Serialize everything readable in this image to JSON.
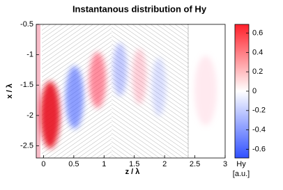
{
  "chart_data": {
    "type": "field",
    "title": "Instantanous distribution of Hy",
    "xlabel": "z / λ",
    "ylabel": "x / λ",
    "xlim": [
      -0.12,
      3
    ],
    "xticks": [
      0,
      0.5,
      1,
      1.5,
      2,
      2.5,
      3
    ],
    "ylim": [
      -2.7,
      -0.5
    ],
    "yticks": [
      -2.5,
      -2,
      -1.5,
      -1,
      -0.5
    ],
    "colorbar": {
      "label": "Hy",
      "unit": "[a.u.]",
      "lim": [
        -0.69,
        0.69
      ],
      "ticks": [
        -0.6,
        -0.4,
        -0.2,
        0,
        0.2,
        0.4,
        0.6
      ],
      "colors": [
        "#3050ff",
        "#ffffff",
        "#ff1f2a"
      ]
    }
  }
}
